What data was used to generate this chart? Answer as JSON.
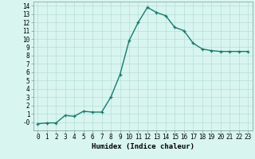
{
  "x": [
    0,
    1,
    2,
    3,
    4,
    5,
    6,
    7,
    8,
    9,
    10,
    11,
    12,
    13,
    14,
    15,
    16,
    17,
    18,
    19,
    20,
    21,
    22,
    23
  ],
  "y": [
    -0.2,
    -0.1,
    -0.1,
    0.8,
    0.7,
    1.3,
    1.2,
    1.2,
    3.0,
    5.7,
    9.8,
    12.0,
    13.8,
    13.2,
    12.8,
    11.4,
    11.0,
    9.5,
    8.8,
    8.6,
    8.5,
    8.5,
    8.5,
    8.5
  ],
  "line_color": "#1a7a6e",
  "marker": "+",
  "markersize": 3.5,
  "linewidth": 1.0,
  "bg_color": "#d8f5f0",
  "grid_color": "#b8ddd8",
  "xlabel": "Humidex (Indice chaleur)",
  "xlabel_fontsize": 6.5,
  "tick_fontsize": 5.5,
  "xlim": [
    -0.5,
    23.5
  ],
  "ylim": [
    -1.0,
    14.5
  ],
  "yticks": [
    0,
    1,
    2,
    3,
    4,
    5,
    6,
    7,
    8,
    9,
    10,
    11,
    12,
    13,
    14
  ],
  "ytick_labels": [
    "-0",
    "1",
    "2",
    "3",
    "4",
    "5",
    "6",
    "7",
    "8",
    "9",
    "10",
    "11",
    "12",
    "13",
    "14"
  ],
  "xticks": [
    0,
    1,
    2,
    3,
    4,
    5,
    6,
    7,
    8,
    9,
    10,
    11,
    12,
    13,
    14,
    15,
    16,
    17,
    18,
    19,
    20,
    21,
    22,
    23
  ]
}
